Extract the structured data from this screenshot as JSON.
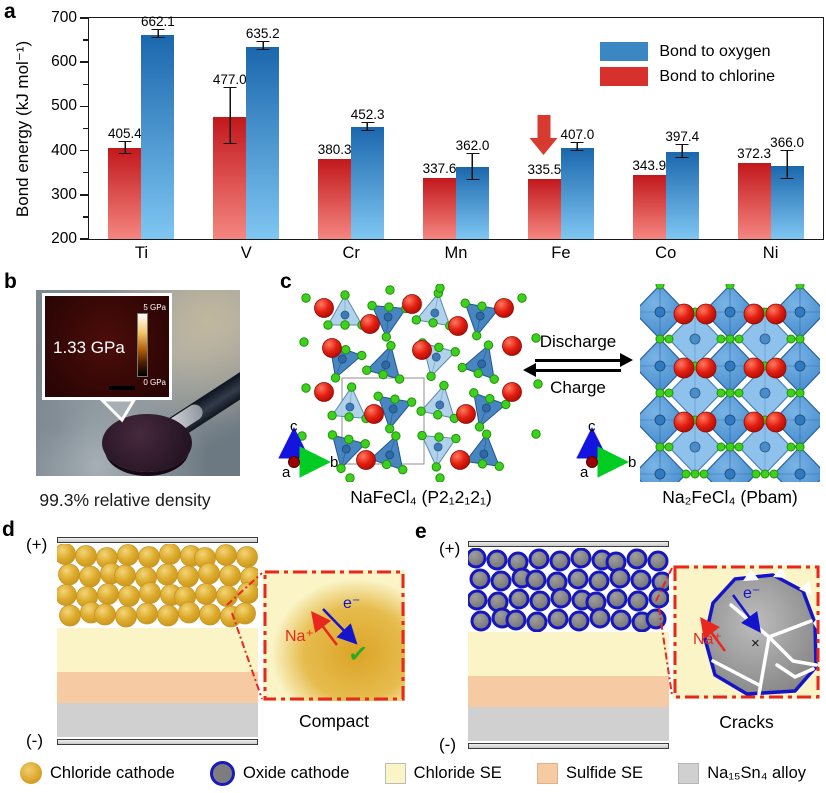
{
  "figure": {
    "panel_labels": {
      "a": "a",
      "b": "b",
      "c": "c",
      "d": "d",
      "e": "e"
    }
  },
  "chart_data": {
    "type": "bar",
    "title": "",
    "xlabel": "",
    "ylabel": "Bond energy (kJ mol⁻¹)",
    "ylim": [
      200,
      700
    ],
    "ytick_step": 100,
    "grid": false,
    "legend_position": "top-right",
    "categories": [
      "Ti",
      "V",
      "Cr",
      "Mn",
      "Fe",
      "Co",
      "Ni"
    ],
    "series": [
      {
        "name": "Bond to chlorine",
        "values": [
          405.4,
          477.0,
          380.3,
          337.6,
          335.5,
          343.9,
          372.3
        ],
        "errors": [
          12,
          63,
          0,
          0,
          0,
          0,
          0
        ],
        "color_top": "#c2181c",
        "color_bottom": "#f58680",
        "legend_color": "#d7312e"
      },
      {
        "name": "Bond to oxygen",
        "values": [
          662.1,
          635.2,
          452.3,
          362.0,
          407.0,
          397.4,
          366.0
        ],
        "errors": [
          8,
          8,
          8,
          28,
          8,
          14,
          30
        ],
        "color_top": "#1b67ad",
        "color_bottom": "#7fc6f2",
        "legend_color": "#3a87c4"
      }
    ],
    "legend_order": [
      1,
      0
    ],
    "annotation": {
      "type": "down-arrow",
      "category_index": 4,
      "series_index": 0,
      "color": "#d73a2e"
    }
  },
  "panel_b": {
    "inset_value": "1.33 GPa",
    "scale_top": "5 GPa",
    "scale_bottom": "0 GPa",
    "caption": "99.3% relative density"
  },
  "panel_c": {
    "left_caption": "NaFeCl₄ (P2₁2₁2₁)",
    "right_caption": "Na₂FeCl₄ (Pbam)",
    "discharge_label": "Discharge",
    "charge_label": "Charge",
    "axis_a": "a",
    "axis_b": "b",
    "axis_c": "c"
  },
  "panel_d": {
    "plus": "(+)",
    "minus": "(-)",
    "na_label": "Na⁺",
    "e_label": "e⁻",
    "check": "✓",
    "caption": "Compact"
  },
  "panel_e": {
    "plus": "(+)",
    "minus": "(-)",
    "na_label": "Na⁺",
    "e_label": "e⁻",
    "cross": "×",
    "caption": "Cracks"
  },
  "legend": {
    "items": [
      {
        "label": "Chloride cathode",
        "swatch": "gold-circle"
      },
      {
        "label": "Oxide cathode",
        "swatch": "gray-circle-blue-border"
      },
      {
        "label": "Chloride SE",
        "swatch": "#faf4c6"
      },
      {
        "label": "Sulfide SE",
        "swatch": "#f6cba4"
      },
      {
        "label": "Na₁₅Sn₄ alloy",
        "swatch": "#d0d0d0"
      }
    ]
  },
  "colors": {
    "bar_chlorine": "#d7312e",
    "bar_oxygen": "#3a87c4",
    "chloride_se": "#faf4c6",
    "sulfide_se": "#f6cba4",
    "alloy": "#d0d0d0",
    "oxide_border": "#1a1abc",
    "zoom_box_border": "#e8281e",
    "na_arrow": "#e8281e",
    "e_arrow": "#1414cc",
    "check": "#28a828"
  }
}
